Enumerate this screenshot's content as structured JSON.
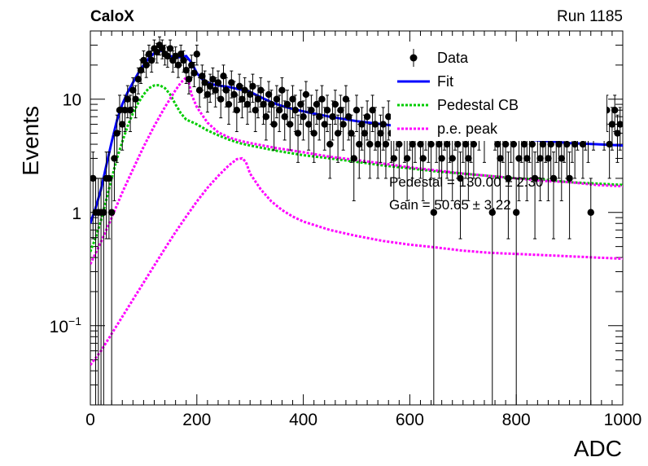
{
  "header": {
    "experiment": "CaloX",
    "run": "Run 1185"
  },
  "chart_data": {
    "type": "scatter",
    "xlabel": "ADC",
    "ylabel": "Events",
    "xlim": [
      0,
      1000
    ],
    "ylim": [
      0.02,
      40
    ],
    "yscale": "log",
    "xticks": [
      0,
      200,
      400,
      600,
      800,
      1000
    ],
    "yticks": [
      {
        "value": 0.1,
        "base": "10",
        "exp": "−1"
      },
      {
        "value": 1,
        "label": "1"
      },
      {
        "value": 10,
        "label": "10"
      }
    ],
    "legend_position": "top-right",
    "legend": [
      {
        "label": "Data",
        "style": "marker",
        "color": "#000000"
      },
      {
        "label": "Fit",
        "style": "line",
        "color": "#0000ff"
      },
      {
        "label": "Pedestal CB",
        "style": "dotted",
        "color": "#00cc00"
      },
      {
        "label": "p.e. peak",
        "style": "dotted",
        "color": "#ff00ff"
      }
    ],
    "annotations": [
      "Pedestal = 130.00 ± 2.30",
      "Gain = 50.65 ± 3.22"
    ],
    "data_points": [
      [
        5,
        2
      ],
      [
        10,
        1
      ],
      [
        15,
        1
      ],
      [
        20,
        1
      ],
      [
        25,
        1
      ],
      [
        30,
        2
      ],
      [
        35,
        2
      ],
      [
        40,
        1
      ],
      [
        45,
        3
      ],
      [
        50,
        5
      ],
      [
        55,
        8
      ],
      [
        60,
        6
      ],
      [
        65,
        8
      ],
      [
        70,
        10
      ],
      [
        75,
        8
      ],
      [
        80,
        12
      ],
      [
        85,
        10
      ],
      [
        90,
        15
      ],
      [
        95,
        18
      ],
      [
        100,
        22
      ],
      [
        105,
        20
      ],
      [
        110,
        25
      ],
      [
        115,
        22
      ],
      [
        120,
        28
      ],
      [
        125,
        26
      ],
      [
        130,
        30
      ],
      [
        135,
        28
      ],
      [
        140,
        25
      ],
      [
        145,
        24
      ],
      [
        150,
        28
      ],
      [
        155,
        22
      ],
      [
        160,
        24
      ],
      [
        165,
        20
      ],
      [
        170,
        25
      ],
      [
        175,
        22
      ],
      [
        180,
        18
      ],
      [
        185,
        15
      ],
      [
        190,
        20
      ],
      [
        195,
        17
      ],
      [
        200,
        25
      ],
      [
        205,
        12
      ],
      [
        210,
        16
      ],
      [
        215,
        14
      ],
      [
        220,
        11
      ],
      [
        225,
        13
      ],
      [
        230,
        15
      ],
      [
        235,
        12
      ],
      [
        240,
        14
      ],
      [
        245,
        10
      ],
      [
        250,
        16
      ],
      [
        255,
        12
      ],
      [
        260,
        9
      ],
      [
        265,
        14
      ],
      [
        270,
        11
      ],
      [
        275,
        8
      ],
      [
        280,
        13
      ],
      [
        285,
        10
      ],
      [
        290,
        12
      ],
      [
        295,
        9
      ],
      [
        300,
        11
      ],
      [
        305,
        13
      ],
      [
        310,
        8
      ],
      [
        315,
        10
      ],
      [
        320,
        12
      ],
      [
        325,
        9
      ],
      [
        330,
        7
      ],
      [
        335,
        11
      ],
      [
        340,
        9
      ],
      [
        345,
        6
      ],
      [
        350,
        10
      ],
      [
        355,
        8
      ],
      [
        360,
        12
      ],
      [
        365,
        7
      ],
      [
        370,
        9
      ],
      [
        375,
        6
      ],
      [
        380,
        10
      ],
      [
        385,
        8
      ],
      [
        390,
        5
      ],
      [
        395,
        9
      ],
      [
        400,
        7
      ],
      [
        405,
        11
      ],
      [
        410,
        6
      ],
      [
        415,
        8
      ],
      [
        420,
        5
      ],
      [
        425,
        9
      ],
      [
        430,
        7
      ],
      [
        435,
        10
      ],
      [
        440,
        6
      ],
      [
        445,
        8
      ],
      [
        450,
        4
      ],
      [
        455,
        7
      ],
      [
        460,
        9
      ],
      [
        465,
        5
      ],
      [
        470,
        8
      ],
      [
        475,
        6
      ],
      [
        480,
        10
      ],
      [
        485,
        7
      ],
      [
        490,
        5
      ],
      [
        495,
        3
      ],
      [
        500,
        8
      ],
      [
        505,
        4
      ],
      [
        510,
        6
      ],
      [
        515,
        5
      ],
      [
        520,
        7
      ],
      [
        525,
        4
      ],
      [
        530,
        8
      ],
      [
        535,
        6
      ],
      [
        540,
        4
      ],
      [
        545,
        5
      ],
      [
        550,
        6
      ],
      [
        555,
        4
      ],
      [
        560,
        7
      ],
      [
        565,
        5
      ],
      [
        570,
        3
      ],
      [
        575,
        6
      ],
      [
        580,
        4
      ],
      [
        585,
        7
      ],
      [
        590,
        5
      ],
      [
        595,
        3
      ],
      [
        600,
        6
      ],
      [
        605,
        4
      ],
      [
        610,
        5
      ],
      [
        615,
        7
      ],
      [
        620,
        4
      ],
      [
        625,
        3
      ],
      [
        630,
        6
      ],
      [
        635,
        5
      ],
      [
        640,
        4
      ],
      [
        645,
        1
      ],
      [
        650,
        5
      ],
      [
        655,
        4
      ],
      [
        660,
        3
      ],
      [
        665,
        6
      ],
      [
        670,
        4
      ],
      [
        675,
        5
      ],
      [
        680,
        3
      ],
      [
        685,
        6
      ],
      [
        690,
        4
      ],
      [
        695,
        2
      ],
      [
        700,
        5
      ],
      [
        705,
        4
      ],
      [
        710,
        3
      ],
      [
        715,
        5
      ],
      [
        720,
        4
      ],
      [
        725,
        8
      ],
      [
        730,
        6
      ],
      [
        735,
        9
      ],
      [
        740,
        5
      ],
      [
        745,
        12
      ],
      [
        750,
        7
      ],
      [
        755,
        1
      ],
      [
        760,
        6
      ],
      [
        765,
        4
      ],
      [
        770,
        3
      ],
      [
        775,
        5
      ],
      [
        780,
        4
      ],
      [
        785,
        2
      ],
      [
        790,
        5
      ],
      [
        795,
        4
      ],
      [
        800,
        1
      ],
      [
        805,
        3
      ],
      [
        810,
        5
      ],
      [
        815,
        4
      ],
      [
        820,
        3
      ],
      [
        825,
        5
      ],
      [
        830,
        4
      ],
      [
        835,
        2
      ],
      [
        840,
        5
      ],
      [
        845,
        3
      ],
      [
        850,
        4
      ],
      [
        855,
        5
      ],
      [
        860,
        3
      ],
      [
        865,
        4
      ],
      [
        870,
        2
      ],
      [
        875,
        5
      ],
      [
        880,
        4
      ],
      [
        885,
        3
      ],
      [
        890,
        5
      ],
      [
        895,
        4
      ],
      [
        900,
        2
      ],
      [
        905,
        5
      ],
      [
        910,
        4
      ],
      [
        915,
        6
      ],
      [
        920,
        8
      ],
      [
        925,
        4
      ],
      [
        930,
        6
      ],
      [
        935,
        5
      ],
      [
        940,
        1
      ],
      [
        945,
        6
      ],
      [
        950,
        8
      ],
      [
        955,
        10
      ],
      [
        960,
        12
      ],
      [
        965,
        6
      ],
      [
        970,
        8
      ],
      [
        975,
        4
      ],
      [
        980,
        6
      ],
      [
        985,
        8
      ],
      [
        990,
        5
      ],
      [
        995,
        6
      ]
    ],
    "fit_curve": [
      [
        0,
        0.8
      ],
      [
        10,
        1.1
      ],
      [
        20,
        1.6
      ],
      [
        30,
        2.6
      ],
      [
        40,
        4.2
      ],
      [
        50,
        6.5
      ],
      [
        60,
        9
      ],
      [
        70,
        11.5
      ],
      [
        80,
        14
      ],
      [
        90,
        17
      ],
      [
        100,
        20
      ],
      [
        110,
        23
      ],
      [
        120,
        25.5
      ],
      [
        130,
        27
      ],
      [
        140,
        26
      ],
      [
        150,
        24
      ],
      [
        160,
        23.5
      ],
      [
        170,
        23.5
      ],
      [
        180,
        24
      ],
      [
        190,
        21
      ],
      [
        200,
        17
      ],
      [
        210,
        15
      ],
      [
        220,
        14
      ],
      [
        230,
        13.5
      ],
      [
        240,
        13.2
      ],
      [
        250,
        13
      ],
      [
        260,
        12.8
      ],
      [
        270,
        12.5
      ],
      [
        280,
        12.2
      ],
      [
        290,
        12
      ],
      [
        300,
        11.6
      ],
      [
        320,
        10.4
      ],
      [
        340,
        9.4
      ],
      [
        360,
        8.7
      ],
      [
        380,
        8.2
      ],
      [
        400,
        7.8
      ],
      [
        450,
        7
      ],
      [
        500,
        6.4
      ],
      [
        550,
        6
      ],
      [
        600,
        5.6
      ],
      [
        650,
        5.3
      ],
      [
        700,
        5
      ],
      [
        750,
        4.7
      ],
      [
        800,
        4.5
      ],
      [
        850,
        4.3
      ],
      [
        900,
        4.1
      ],
      [
        950,
        4
      ],
      [
        1000,
        3.9
      ]
    ],
    "pedestal_curve": [
      [
        0,
        0.45
      ],
      [
        10,
        0.6
      ],
      [
        20,
        0.85
      ],
      [
        30,
        1.3
      ],
      [
        40,
        2
      ],
      [
        50,
        3
      ],
      [
        60,
        4.2
      ],
      [
        70,
        5.8
      ],
      [
        80,
        7.5
      ],
      [
        90,
        9.3
      ],
      [
        100,
        11
      ],
      [
        110,
        12.5
      ],
      [
        120,
        13.2
      ],
      [
        130,
        13.3
      ],
      [
        140,
        12.5
      ],
      [
        150,
        11
      ],
      [
        160,
        9
      ],
      [
        170,
        7.5
      ],
      [
        180,
        6.6
      ],
      [
        190,
        6.3
      ],
      [
        200,
        6
      ],
      [
        220,
        5.3
      ],
      [
        240,
        4.8
      ],
      [
        260,
        4.4
      ],
      [
        280,
        4.1
      ],
      [
        300,
        3.9
      ],
      [
        350,
        3.5
      ],
      [
        400,
        3.2
      ],
      [
        450,
        3
      ],
      [
        500,
        2.8
      ],
      [
        550,
        2.6
      ],
      [
        600,
        2.45
      ],
      [
        650,
        2.3
      ],
      [
        700,
        2.2
      ],
      [
        750,
        2.1
      ],
      [
        800,
        2
      ],
      [
        850,
        1.95
      ],
      [
        900,
        1.85
      ],
      [
        950,
        1.8
      ],
      [
        1000,
        1.75
      ]
    ],
    "pe_peak_1": [
      [
        0,
        0.35
      ],
      [
        20,
        0.55
      ],
      [
        40,
        0.9
      ],
      [
        60,
        1.5
      ],
      [
        80,
        2.4
      ],
      [
        100,
        3.8
      ],
      [
        120,
        5.8
      ],
      [
        140,
        8.5
      ],
      [
        160,
        12
      ],
      [
        170,
        14
      ],
      [
        180,
        15.5
      ],
      [
        185,
        14
      ],
      [
        190,
        11
      ],
      [
        200,
        8.5
      ],
      [
        220,
        6.2
      ],
      [
        240,
        5.1
      ],
      [
        260,
        4.6
      ],
      [
        280,
        4.3
      ],
      [
        300,
        4.1
      ],
      [
        350,
        3.7
      ],
      [
        400,
        3.4
      ],
      [
        450,
        3.1
      ],
      [
        500,
        2.9
      ],
      [
        550,
        2.7
      ],
      [
        600,
        2.5
      ],
      [
        650,
        2.35
      ],
      [
        700,
        2.2
      ],
      [
        750,
        2.1
      ],
      [
        800,
        2
      ],
      [
        850,
        1.9
      ],
      [
        900,
        1.85
      ],
      [
        950,
        1.75
      ],
      [
        1000,
        1.7
      ]
    ],
    "pe_peak_2": [
      [
        0,
        0.045
      ],
      [
        20,
        0.06
      ],
      [
        40,
        0.085
      ],
      [
        60,
        0.12
      ],
      [
        80,
        0.17
      ],
      [
        100,
        0.24
      ],
      [
        120,
        0.34
      ],
      [
        140,
        0.48
      ],
      [
        160,
        0.67
      ],
      [
        180,
        0.92
      ],
      [
        200,
        1.25
      ],
      [
        220,
        1.65
      ],
      [
        240,
        2.1
      ],
      [
        260,
        2.6
      ],
      [
        275,
        2.95
      ],
      [
        285,
        3
      ],
      [
        292,
        2.8
      ],
      [
        300,
        2.2
      ],
      [
        320,
        1.6
      ],
      [
        340,
        1.25
      ],
      [
        360,
        1.05
      ],
      [
        380,
        0.92
      ],
      [
        400,
        0.83
      ],
      [
        450,
        0.7
      ],
      [
        500,
        0.62
      ],
      [
        550,
        0.56
      ],
      [
        600,
        0.52
      ],
      [
        650,
        0.49
      ],
      [
        700,
        0.46
      ],
      [
        750,
        0.44
      ],
      [
        800,
        0.43
      ],
      [
        850,
        0.42
      ],
      [
        900,
        0.41
      ],
      [
        950,
        0.4
      ],
      [
        1000,
        0.39
      ]
    ]
  }
}
